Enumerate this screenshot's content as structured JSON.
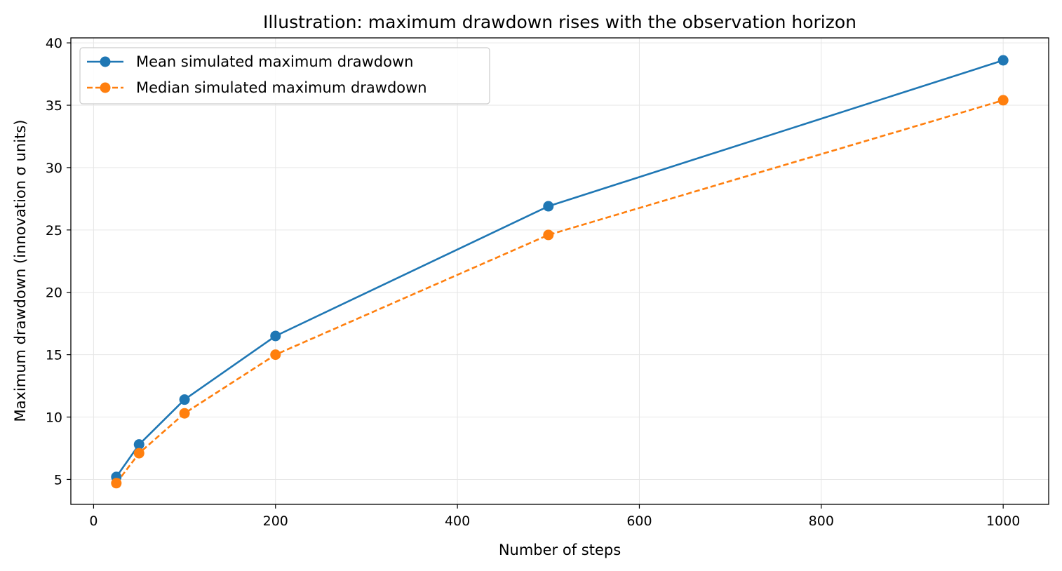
{
  "chart_data": {
    "type": "line",
    "title": "Illustration: maximum drawdown rises with the observation horizon",
    "xlabel": "Number of steps",
    "ylabel": "Maximum drawdown (innovation σ units)",
    "xlim": [
      -25,
      1050
    ],
    "ylim": [
      3.0,
      40.4
    ],
    "xticks": [
      0,
      200,
      400,
      600,
      800,
      1000
    ],
    "yticks": [
      5,
      10,
      15,
      20,
      25,
      30,
      35,
      40
    ],
    "grid": true,
    "legend_position": "upper-left",
    "x": [
      25,
      50,
      100,
      200,
      500,
      1000
    ],
    "series": [
      {
        "name": "Mean simulated maximum drawdown",
        "values": [
          5.2,
          7.8,
          11.4,
          16.5,
          26.9,
          38.6
        ],
        "color": "#1f77b4",
        "line_style": "solid",
        "marker": "circle"
      },
      {
        "name": "Median simulated maximum drawdown",
        "values": [
          4.7,
          7.1,
          10.3,
          15.0,
          24.6,
          35.4
        ],
        "color": "#ff7f0e",
        "line_style": "dashed",
        "marker": "circle"
      }
    ]
  }
}
